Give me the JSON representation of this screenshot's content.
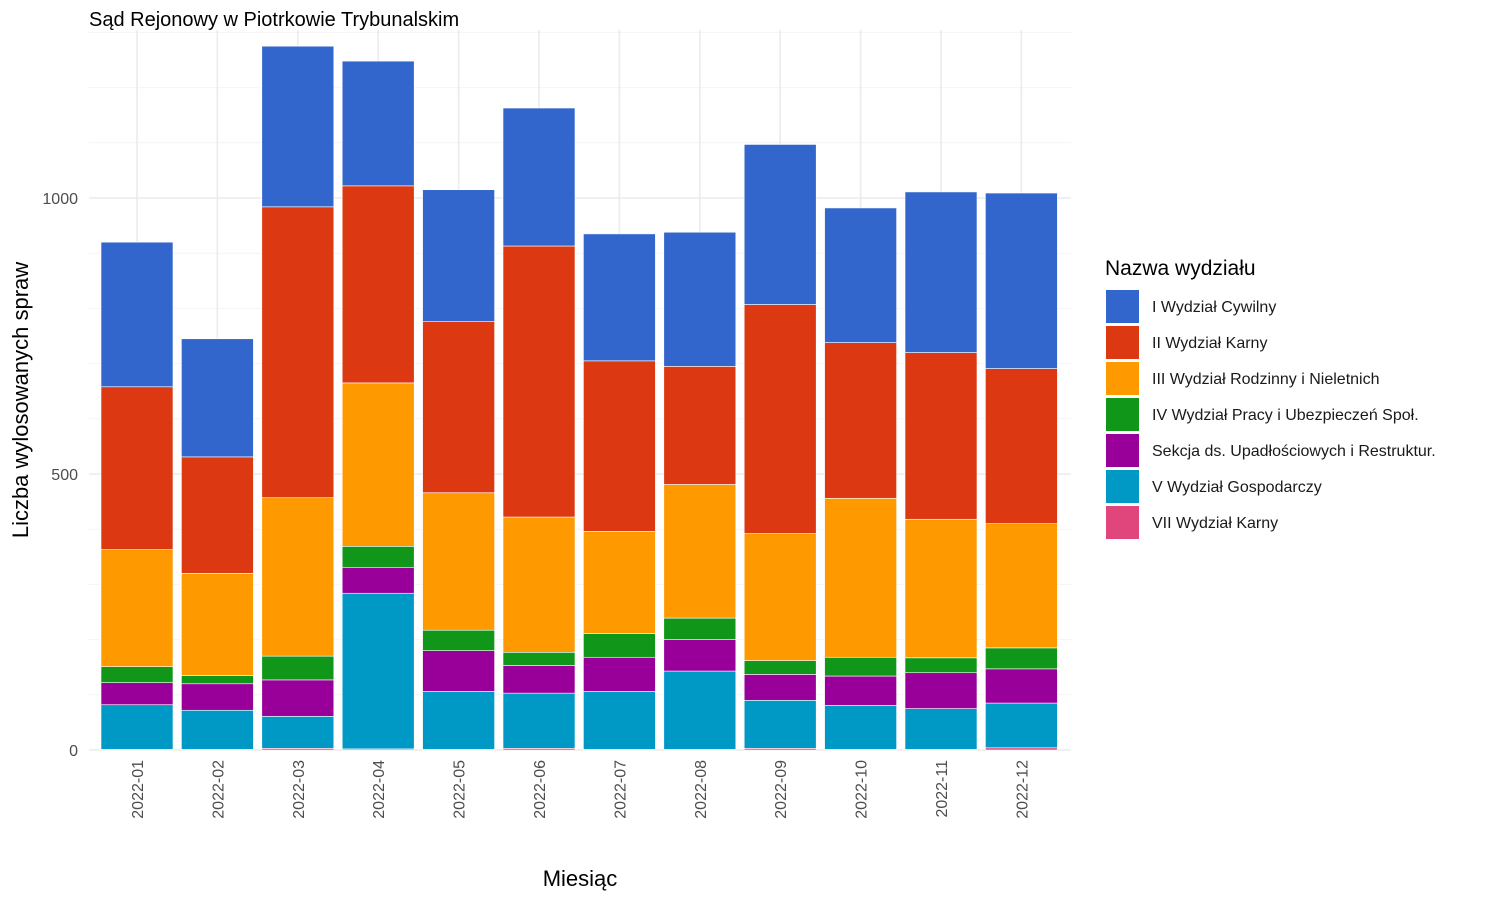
{
  "chart_data": {
    "type": "bar",
    "stacked": true,
    "title": "Sąd Rejonowy w Piotrkowie Trybunalskim",
    "xlabel": "Miesiąc",
    "ylabel": "Liczba wylosowanych spraw",
    "ylim": [
      0,
      1300
    ],
    "yticks": [
      0,
      500,
      1000
    ],
    "grid": true,
    "legend_title": "Nazwa wydziału",
    "legend_position": "right",
    "categories": [
      "2022-01",
      "2022-02",
      "2022-03",
      "2022-04",
      "2022-05",
      "2022-06",
      "2022-07",
      "2022-08",
      "2022-09",
      "2022-10",
      "2022-11",
      "2022-12"
    ],
    "series": [
      {
        "name": "VII Wydział Karny",
        "color": "#e0457b",
        "values": [
          1,
          1,
          3,
          2,
          1,
          3,
          1,
          1,
          3,
          1,
          1,
          4
        ]
      },
      {
        "name": "V Wydział Gospodarczy",
        "color": "#0099c6",
        "values": [
          81,
          71,
          58,
          282,
          105,
          100,
          105,
          142,
          87,
          80,
          74,
          81
        ]
      },
      {
        "name": "Sekcja ds. Upadłościowych i Restruktur.",
        "color": "#990099",
        "values": [
          40,
          48,
          66,
          47,
          74,
          50,
          62,
          57,
          47,
          53,
          65,
          62
        ]
      },
      {
        "name": "IV Wydział Pracy i Ubezpieczeń Społ.",
        "color": "#109618",
        "values": [
          29,
          15,
          43,
          38,
          37,
          24,
          43,
          39,
          25,
          34,
          27,
          38
        ]
      },
      {
        "name": "III Wydział Rodzinny i Nieletnich",
        "color": "#ff9900",
        "values": [
          212,
          185,
          287,
          296,
          249,
          245,
          185,
          242,
          230,
          288,
          251,
          225
        ]
      },
      {
        "name": "II Wydział Karny",
        "color": "#dc3912",
        "values": [
          295,
          211,
          527,
          357,
          310,
          491,
          309,
          214,
          415,
          282,
          302,
          281
        ]
      },
      {
        "name": "I Wydział Cywilny",
        "color": "#3366cc",
        "values": [
          262,
          214,
          291,
          226,
          239,
          250,
          230,
          243,
          290,
          244,
          291,
          318
        ]
      }
    ],
    "legend_order": [
      "I Wydział Cywilny",
      "II Wydział Karny",
      "III Wydział Rodzinny i Nieletnich",
      "IV Wydział Pracy i Ubezpieczeń Społ.",
      "Sekcja ds. Upadłościowych i Restruktur.",
      "V Wydział Gospodarczy",
      "VII Wydział Karny"
    ]
  }
}
